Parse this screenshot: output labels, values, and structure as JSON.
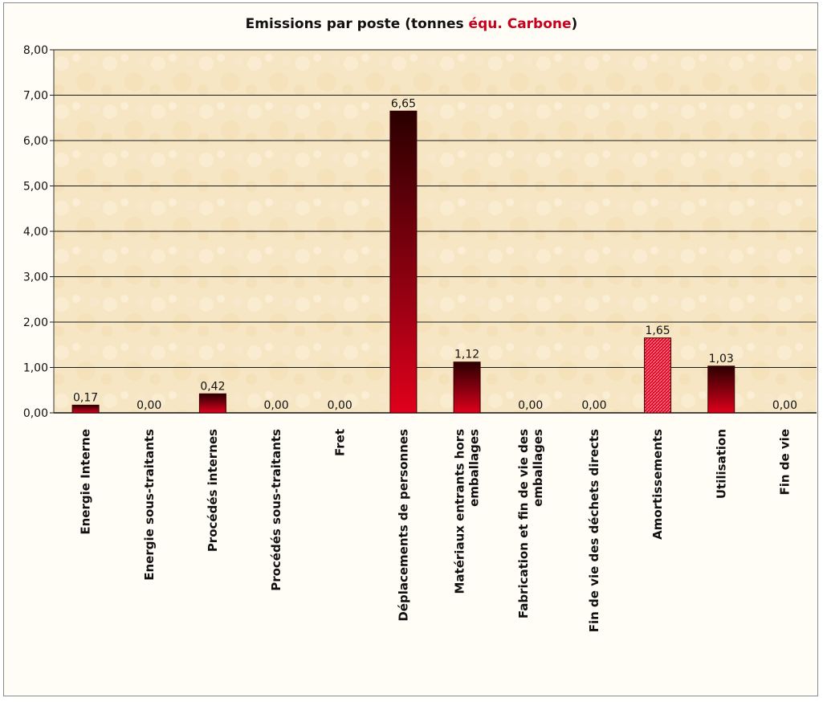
{
  "chart_data": {
    "type": "bar",
    "title": {
      "prefix": "Emissions par poste (tonnes ",
      "accent": "équ. Carbone",
      "suffix": ")"
    },
    "categories": [
      "Energie Interne",
      "Energie sous-traitants",
      "Procédés internes",
      "Procédés sous-traitants",
      "Fret",
      "Déplacements de personnes",
      "Matériaux entrants hors emballages",
      "Fabrication et fin de vie des emballages",
      "Fin de vie des déchets directs",
      "Amortissements",
      "Utilisation",
      "Fin de vie"
    ],
    "category_label_lines": [
      [
        "Energie Interne"
      ],
      [
        "Energie sous-traitants"
      ],
      [
        "Procédés internes"
      ],
      [
        "Procédés sous-traitants"
      ],
      [
        "Fret"
      ],
      [
        "Déplacements de personnes"
      ],
      [
        "Matériaux entrants hors",
        "emballages"
      ],
      [
        "Fabrication et fin de vie des",
        "emballages"
      ],
      [
        "Fin de vie des déchets directs"
      ],
      [
        "Amortissements"
      ],
      [
        "Utilisation"
      ],
      [
        "Fin de vie"
      ]
    ],
    "values": [
      0.17,
      0.0,
      0.42,
      0.0,
      0.0,
      6.65,
      1.12,
      0.0,
      0.0,
      1.65,
      1.03,
      0.0
    ],
    "data_labels": [
      "0,17",
      "0,00",
      "0,42",
      "0,00",
      "0,00",
      "6,65",
      "1,12",
      "0,00",
      "0,00",
      "1,65",
      "1,03",
      "0,00"
    ],
    "bar_style": [
      "gradient",
      "gradient",
      "gradient",
      "gradient",
      "gradient",
      "gradient",
      "gradient",
      "gradient",
      "gradient",
      "hatched",
      "gradient",
      "gradient"
    ],
    "ylim": [
      0,
      8
    ],
    "yticks": [
      0,
      1,
      2,
      3,
      4,
      5,
      6,
      7,
      8
    ],
    "ytick_labels": [
      "0,00",
      "1,00",
      "2,00",
      "3,00",
      "4,00",
      "5,00",
      "6,00",
      "7,00",
      "8,00"
    ],
    "xlabel": "",
    "ylabel": "",
    "grid": true,
    "legend": "none",
    "colors": {
      "bar_top": "#2a0000",
      "bar_bottom": "#e0001c",
      "hatched_bar": "#e8001e",
      "plot_background": "#f7e6c4",
      "title_accent": "#c8001e"
    }
  }
}
